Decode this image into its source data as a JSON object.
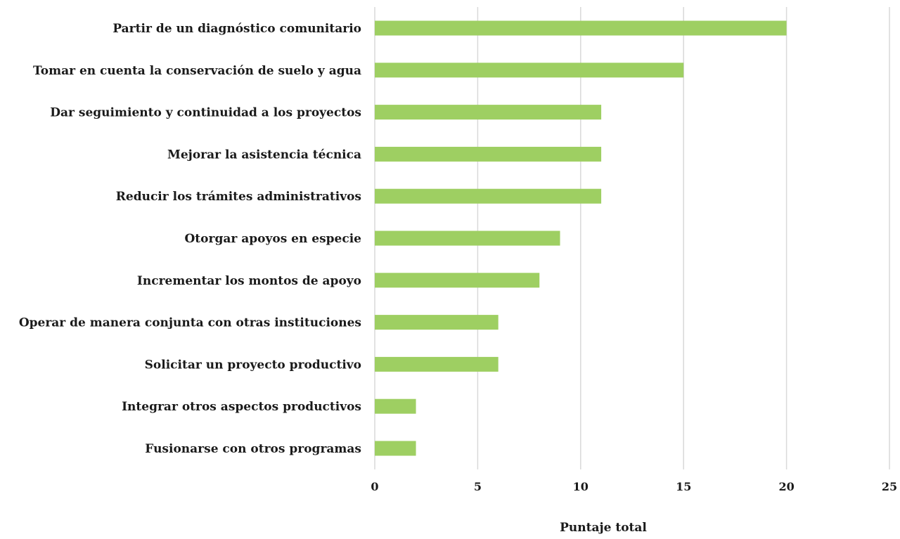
{
  "chart_data": {
    "type": "bar",
    "orientation": "horizontal",
    "title": "",
    "xlabel": "Puntaje total",
    "ylabel": "",
    "xlim": [
      0,
      25
    ],
    "x_ticks": [
      "0",
      "5",
      "10",
      "15",
      "20",
      "25"
    ],
    "grid": "vertical",
    "legend": "none",
    "bar_color": "#9ecf62",
    "grid_color": "#d9d9d9",
    "categories": [
      "Partir de un diagnóstico comunitario",
      "Tomar en cuenta la conservación de suelo y agua",
      "Dar seguimiento y continuidad a los proyectos",
      "Mejorar la asistencia técnica",
      "Reducir los trámites administrativos",
      "Otorgar apoyos en especie",
      "Incrementar los montos de apoyo",
      "Operar de manera conjunta con otras instituciones",
      "Solicitar un proyecto productivo",
      "Integrar otros aspectos productivos",
      "Fusionarse con otros programas"
    ],
    "values": [
      20,
      15,
      11,
      11,
      11,
      9,
      8,
      6,
      6,
      2,
      2
    ]
  }
}
